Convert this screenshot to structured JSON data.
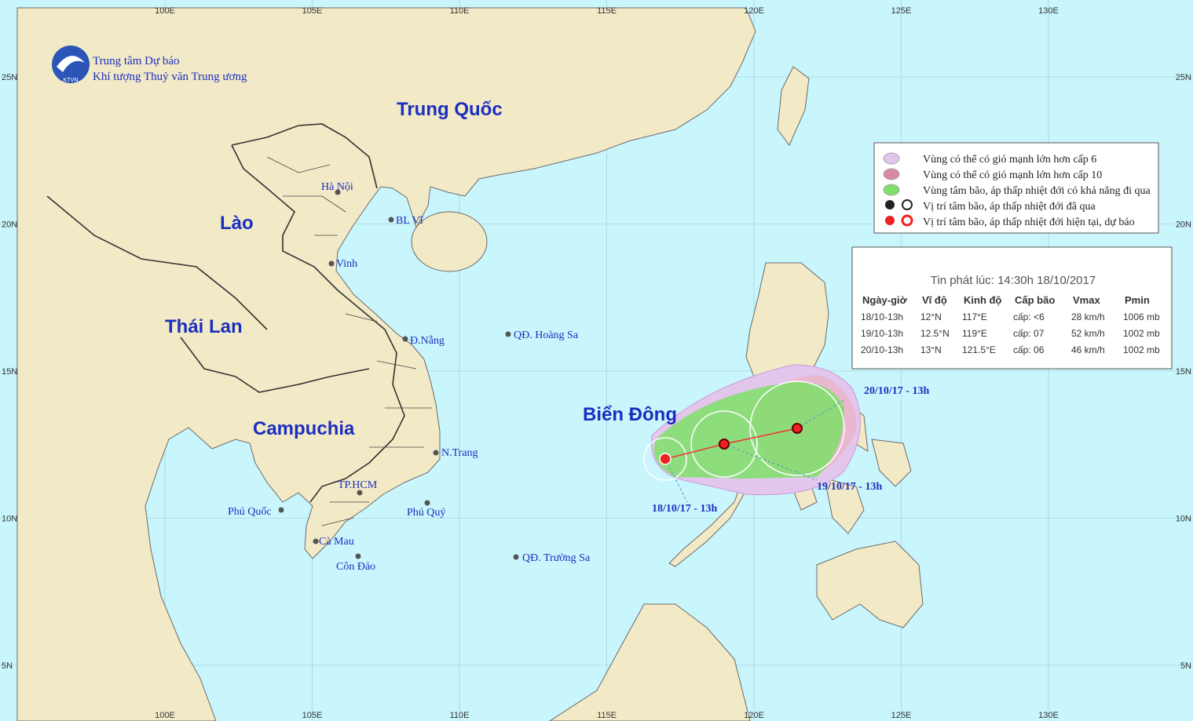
{
  "header": {
    "org_line1": "Trung tâm Dự báo",
    "org_line2": "Khí tượng Thuỷ văn Trung ương",
    "logo_text": "KTVN"
  },
  "axes": {
    "lon_labels": [
      "100E",
      "105E",
      "110E",
      "115E",
      "120E",
      "125E",
      "130E"
    ],
    "lat_labels": [
      "25N",
      "20N",
      "15N",
      "10N",
      "5N"
    ]
  },
  "countries": [
    "Trung Quốc",
    "Lào",
    "Thái Lan",
    "Campuchia",
    "Biển Đông"
  ],
  "places": [
    "Hà Nội",
    "BL Vĩ",
    "Vinh",
    "Đ.Nẵng",
    "QĐ. Hoàng Sa",
    "N.Trang",
    "TP.HCM",
    "Phú Quốc",
    "Phú Quý",
    "Cà Mau",
    "Côn Đảo",
    "QĐ. Trường Sa"
  ],
  "track_labels": [
    "18/10/17 - 13h",
    "19/10/17 - 13h",
    "20/10/17 - 13h"
  ],
  "legend": [
    "Vùng có thể có gió mạnh lớn hơn cấp 6",
    "Vùng có thể có gió mạnh lớn hơn cấp 10",
    "Vùng tâm bão, áp thấp nhiệt đới có khả năng đi qua",
    "Vị trí tâm bão, áp thấp nhiệt đới đã qua",
    "Vị trí tâm bão, áp thấp nhiệt đới hiện tại, dự báo"
  ],
  "info": {
    "title": "Tin phát lúc: 14:30h 18/10/2017",
    "columns": [
      "Ngày-giờ",
      "Vĩ độ",
      "Kinh độ",
      "Cấp bão",
      "Vmax",
      "Pmin"
    ],
    "rows": [
      [
        "18/10-13h",
        "12°N",
        "117°E",
        "cấp: <6",
        "28 km/h",
        "1006 mb"
      ],
      [
        "19/10-13h",
        "12.5°N",
        "119°E",
        "cấp: 07",
        "52 km/h",
        "1002 mb"
      ],
      [
        "20/10-13h",
        "13°N",
        "121.5°E",
        "cấp: 06",
        "46 km/h",
        "1002 mb"
      ]
    ]
  }
}
